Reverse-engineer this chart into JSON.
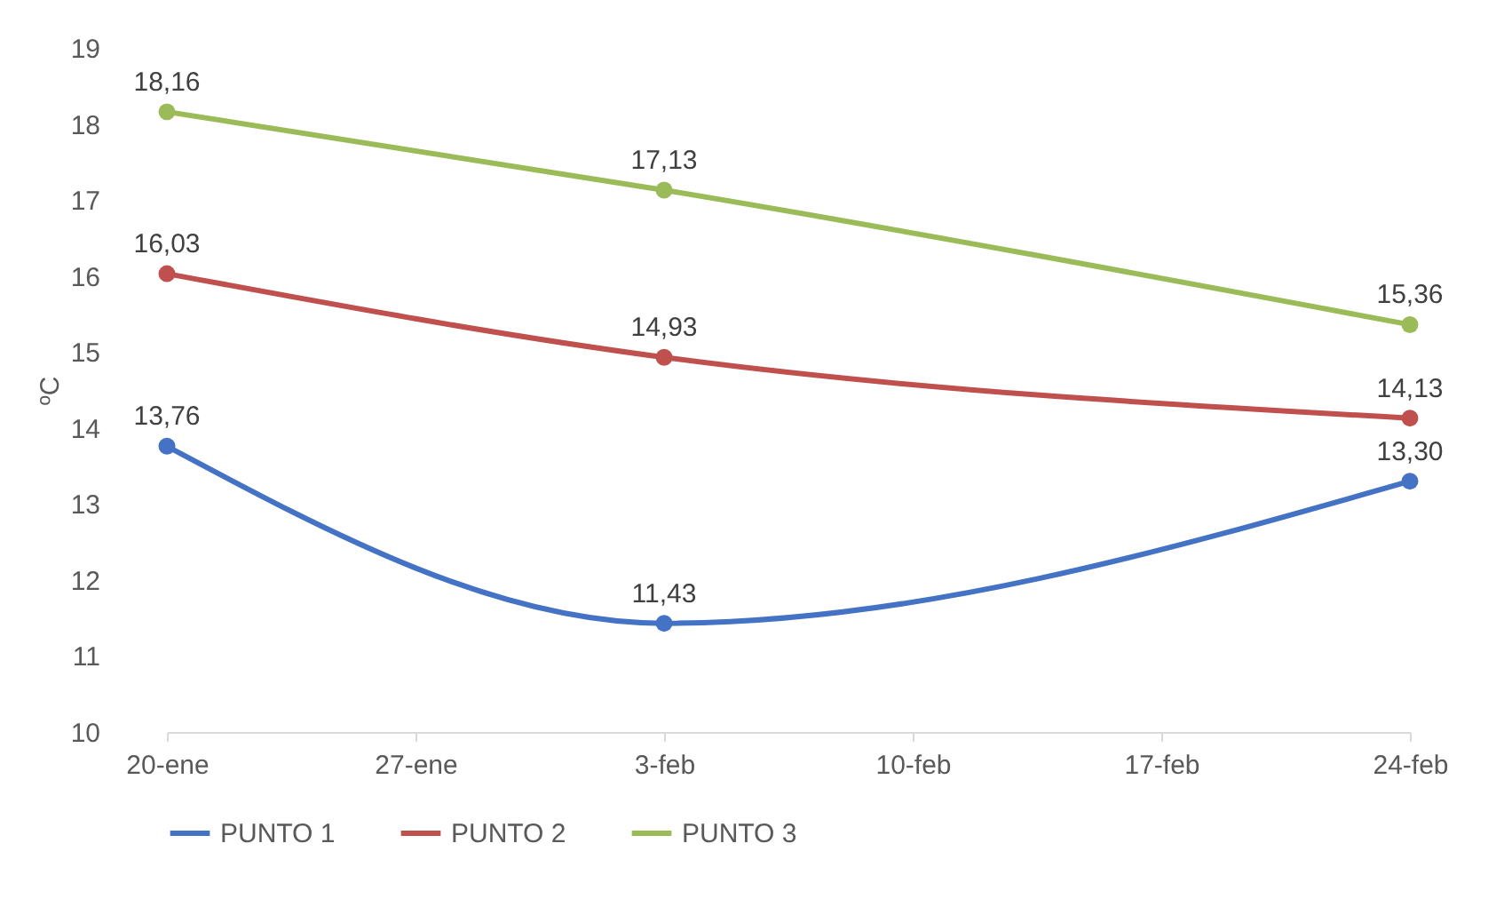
{
  "chart_data": {
    "type": "line",
    "ylabel": "ºC",
    "x": [
      "--01-20",
      "--02-03",
      "--02-24"
    ],
    "xlim": [
      "--01-20",
      "--02-24"
    ],
    "xticks": [
      {
        "value": "--01-20",
        "label": "20-ene"
      },
      {
        "value": "--01-27",
        "label": "27-ene"
      },
      {
        "value": "--02-03",
        "label": "3-feb"
      },
      {
        "value": "--02-10",
        "label": "10-feb"
      },
      {
        "value": "--02-17",
        "label": "17-feb"
      },
      {
        "value": "--02-24",
        "label": "24-feb"
      }
    ],
    "ylim": [
      10,
      19
    ],
    "yticks": [
      10,
      11,
      12,
      13,
      14,
      15,
      16,
      17,
      18,
      19
    ],
    "series": [
      {
        "name": "PUNTO 1",
        "color": "#4472c4",
        "values": [
          13.76,
          11.43,
          13.3
        ],
        "value_labels": [
          "13,76",
          "11,43",
          "13,30"
        ]
      },
      {
        "name": "PUNTO 2",
        "color": "#c0504d",
        "values": [
          16.03,
          14.93,
          14.13
        ],
        "value_labels": [
          "16,03",
          "14,93",
          "14,13"
        ]
      },
      {
        "name": "PUNTO 3",
        "color": "#9bbb59",
        "values": [
          18.16,
          17.13,
          15.36
        ],
        "value_labels": [
          "18,16",
          "17,13",
          "15,36"
        ]
      }
    ],
    "grid": false,
    "legend": "bottom",
    "marker": "circle",
    "line_style": "solid"
  }
}
